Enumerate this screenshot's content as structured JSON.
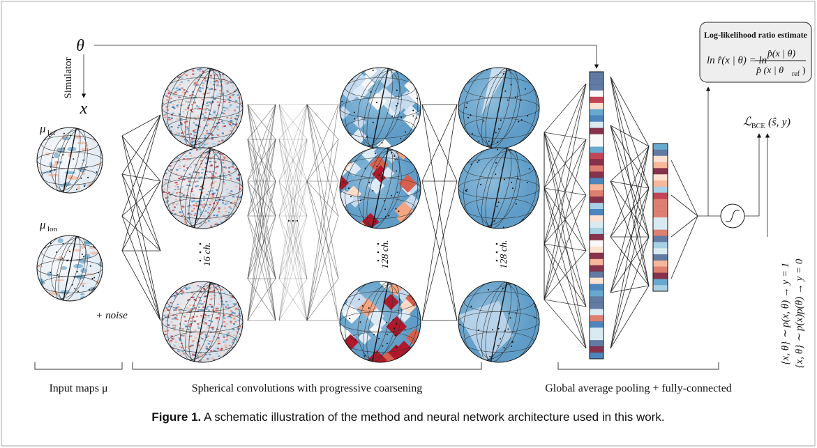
{
  "figure": {
    "labels": {
      "theta": "θ",
      "simulator": "Simulator",
      "x": "x",
      "mu_lat": "μ",
      "mu_lat_sub": "lat",
      "mu_lon": "μ",
      "mu_lon_sub": "lon",
      "noise": "+ noise",
      "ch16": "16 ch.",
      "ch128a": "128 ch.",
      "ch128b": "128 ch.",
      "ellipsis": "…",
      "loss": "ℒ",
      "loss_sub": "BCE",
      "loss_args": "(ŝ, y)"
    },
    "estimate_box": {
      "title": "Log-likelihood ratio estimate",
      "lhs": "ln r̂(x | θ) = ln",
      "numerator": "p̂(x | θ)",
      "denominator": "p̂ (x | θ",
      "denominator_sub": "ref",
      "denominator_end": ")"
    },
    "training": [
      "{x, θ} ∼ p(x, θ) → y = 1",
      "{x, θ} ∼ p(x)p(θ) → y = 0"
    ],
    "stages": [
      "Input maps μ",
      "Spherical convolutions with progressive coarsening",
      "Global average pooling + fully-connected"
    ],
    "caption": {
      "label": "Figure 1.",
      "text": " A schematic illustration of the method and neural network architecture used in this work."
    }
  }
}
